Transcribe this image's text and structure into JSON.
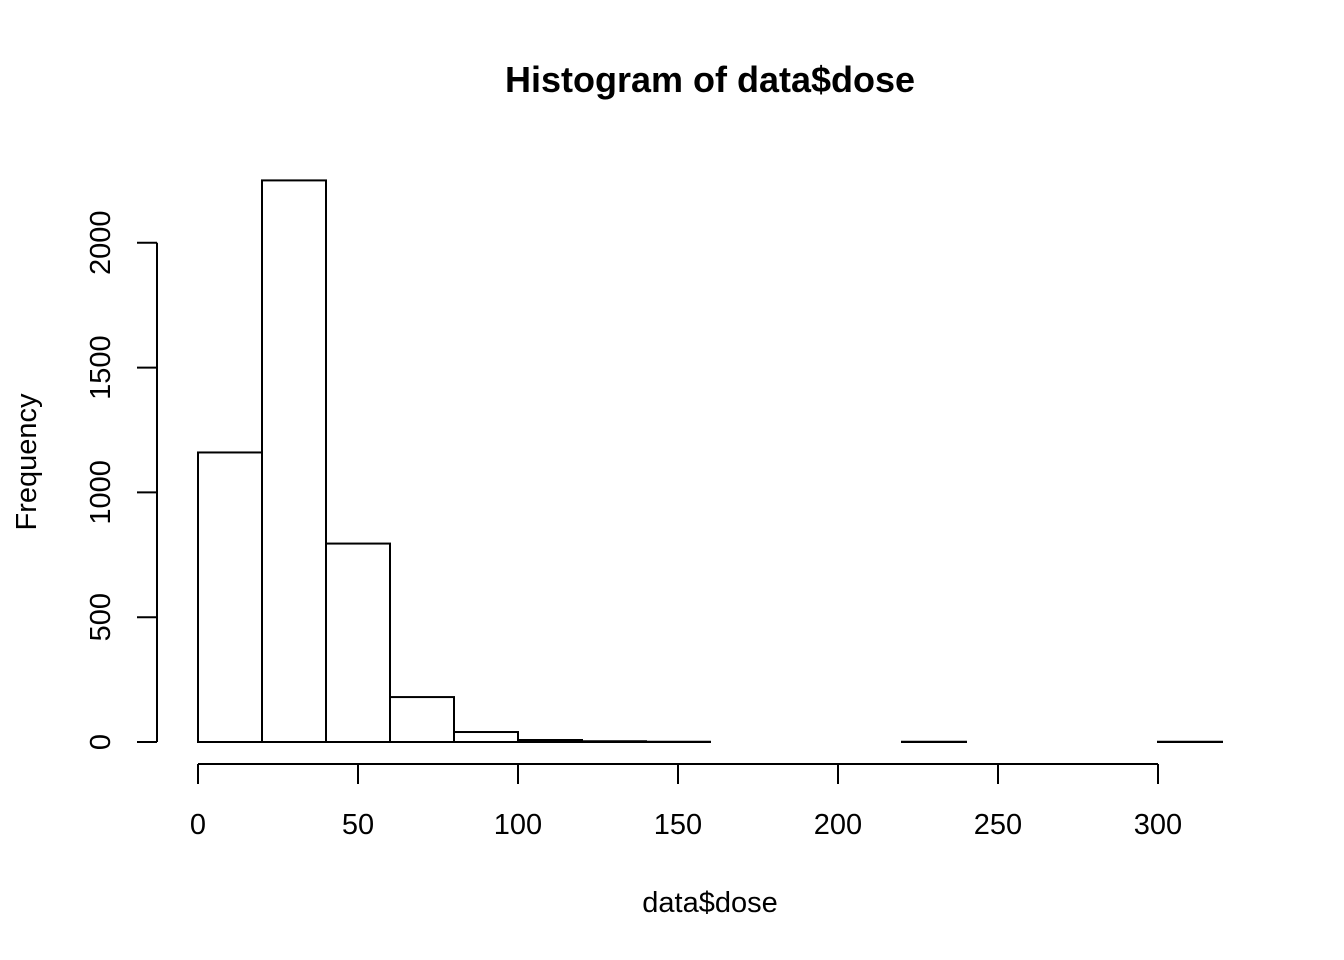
{
  "chart_data": {
    "type": "bar",
    "title": "Histogram of data$dose",
    "xlabel": "data$dose",
    "ylabel": "Frequency",
    "bin_width": 20,
    "bins": [
      {
        "start": 0,
        "end": 20,
        "count": 1160
      },
      {
        "start": 20,
        "end": 40,
        "count": 2250
      },
      {
        "start": 40,
        "end": 60,
        "count": 795
      },
      {
        "start": 60,
        "end": 80,
        "count": 180
      },
      {
        "start": 80,
        "end": 100,
        "count": 40
      },
      {
        "start": 100,
        "end": 120,
        "count": 8
      },
      {
        "start": 120,
        "end": 140,
        "count": 3
      },
      {
        "start": 140,
        "end": 160,
        "count": 1
      },
      {
        "start": 160,
        "end": 180,
        "count": 0
      },
      {
        "start": 180,
        "end": 200,
        "count": 0
      },
      {
        "start": 200,
        "end": 220,
        "count": 0
      },
      {
        "start": 220,
        "end": 240,
        "count": 1
      },
      {
        "start": 240,
        "end": 260,
        "count": 0
      },
      {
        "start": 260,
        "end": 280,
        "count": 0
      },
      {
        "start": 280,
        "end": 300,
        "count": 0
      },
      {
        "start": 300,
        "end": 320,
        "count": 1
      }
    ],
    "x_ticks": [
      0,
      50,
      100,
      150,
      200,
      250,
      300
    ],
    "y_ticks": [
      0,
      500,
      1000,
      1500,
      2000
    ],
    "xlim": [
      0,
      320
    ],
    "ylim": [
      0,
      2250
    ],
    "grid": false,
    "legend": "none"
  }
}
